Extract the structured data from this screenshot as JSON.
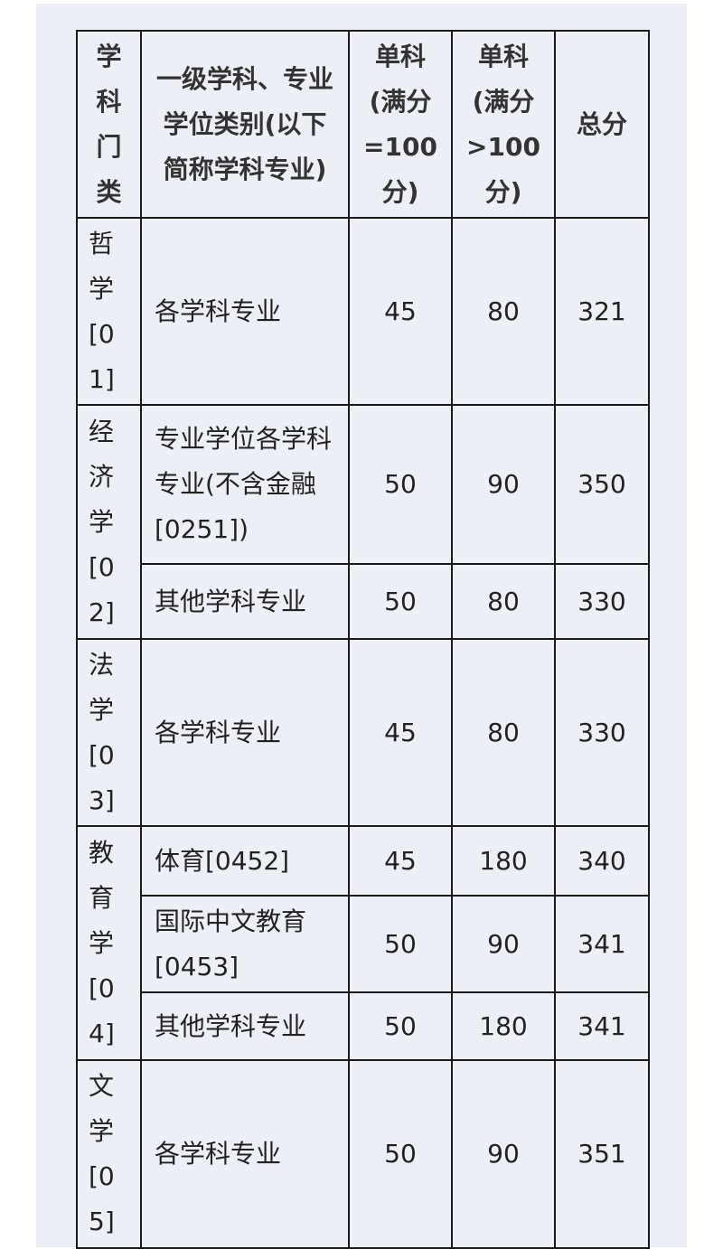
{
  "headers": [
    "学科门类",
    "一级学科、专业学位类别(以下简称学科专业)",
    "单科(满分=100分)",
    "单科(满分>100分)",
    "总分"
  ],
  "groups": [
    {
      "category": "哲学[01]",
      "rows": [
        {
          "major": "各学科专业",
          "s100": "45",
          "sgt100": "80",
          "total": "321"
        }
      ]
    },
    {
      "category": "经济学[02]",
      "rows": [
        {
          "major": "专业学位各学科专业(不含金融[0251])",
          "s100": "50",
          "sgt100": "90",
          "total": "350"
        },
        {
          "major": "其他学科专业",
          "s100": "50",
          "sgt100": "80",
          "total": "330"
        }
      ]
    },
    {
      "category": "法学[03]",
      "rows": [
        {
          "major": "各学科专业",
          "s100": "45",
          "sgt100": "80",
          "total": "330"
        }
      ]
    },
    {
      "category": "教育学[04]",
      "rows": [
        {
          "major": "体育[0452]",
          "s100": "45",
          "sgt100": "180",
          "total": "340"
        },
        {
          "major": "国际中文教育[0453]",
          "s100": "50",
          "sgt100": "90",
          "total": "341"
        },
        {
          "major": "其他学科专业",
          "s100": "50",
          "sgt100": "180",
          "total": "341"
        }
      ]
    },
    {
      "category": "文学[05]",
      "rows": [
        {
          "major": "各学科专业",
          "s100": "50",
          "sgt100": "90",
          "total": "351"
        }
      ]
    }
  ]
}
